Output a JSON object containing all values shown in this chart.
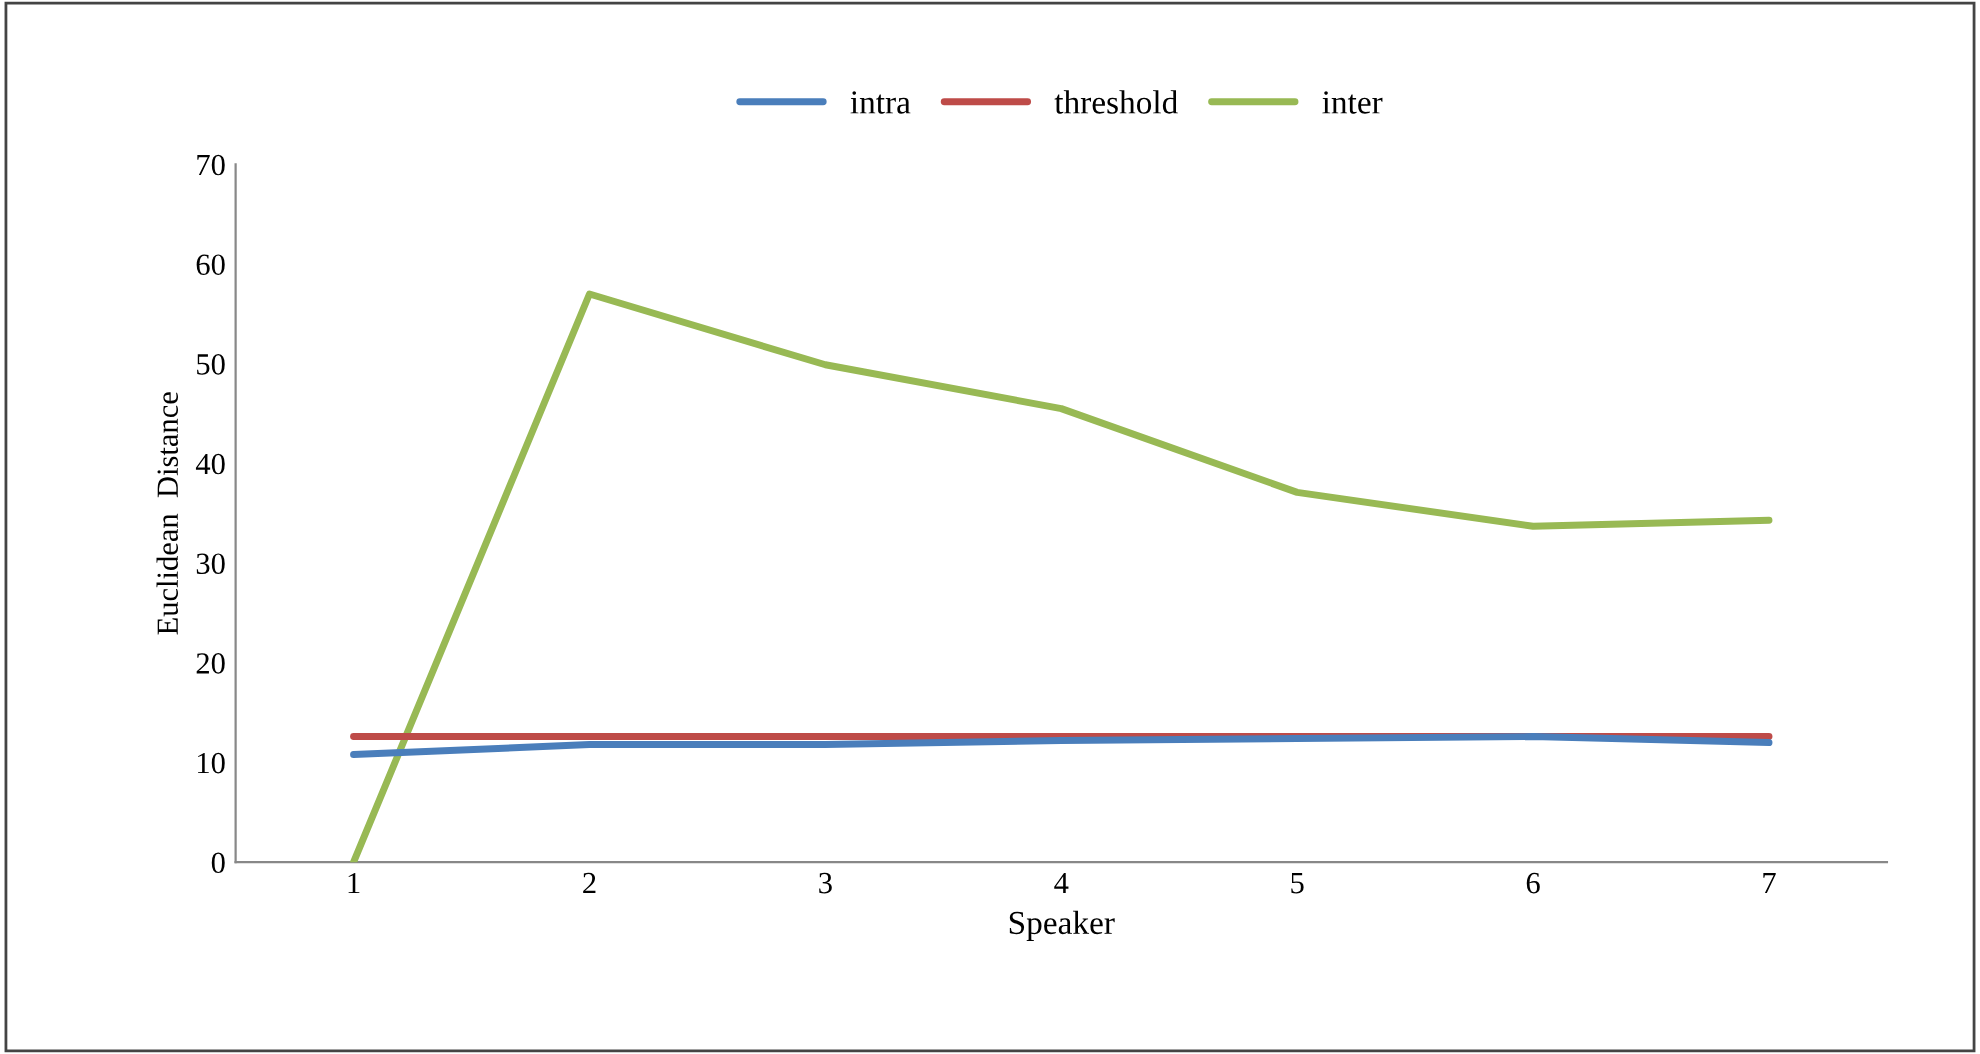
{
  "chart_data": {
    "type": "line",
    "xlabel": "Speaker",
    "ylabel": "Euclidean  Distance",
    "categories": [
      "1",
      "2",
      "3",
      "4",
      "5",
      "6",
      "7"
    ],
    "series": [
      {
        "name": "intra",
        "color": "#4a7ebb",
        "values": [
          10.8,
          11.8,
          11.8,
          12.2,
          12.4,
          12.6,
          12.0
        ]
      },
      {
        "name": "threshold",
        "color": "#be4b48",
        "values": [
          12.6,
          12.6,
          12.6,
          12.6,
          12.6,
          12.6,
          12.6
        ]
      },
      {
        "name": "inter",
        "color": "#98b954",
        "values": [
          0,
          57.0,
          49.9,
          45.5,
          37.1,
          33.7,
          34.3
        ]
      }
    ],
    "ylim": [
      0,
      70
    ],
    "yticks": [
      0,
      10,
      20,
      30,
      40,
      50,
      60,
      70
    ],
    "grid": false,
    "legend": "top",
    "marker": "none",
    "line_style": "solid"
  }
}
